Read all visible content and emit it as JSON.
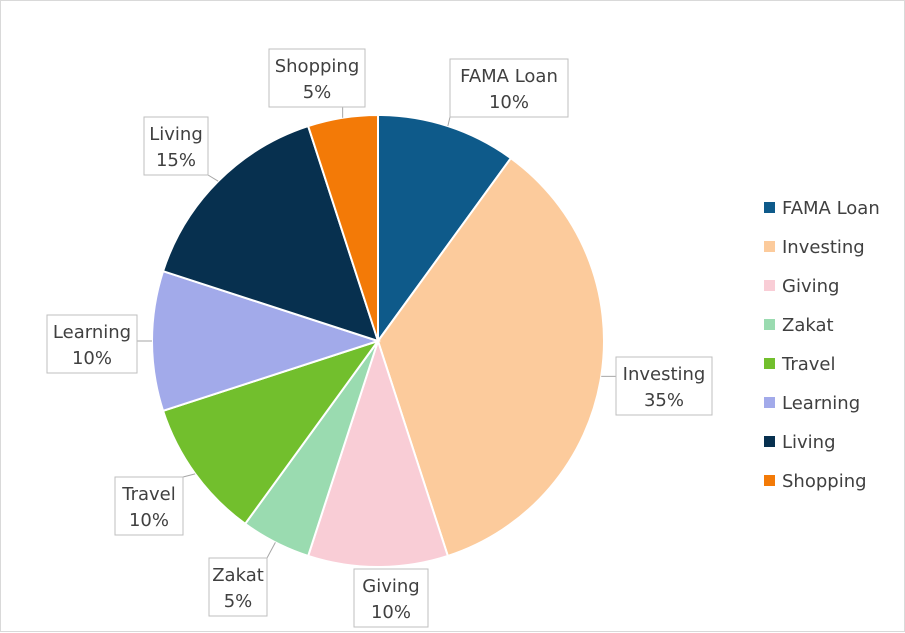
{
  "chart_data": {
    "type": "pie",
    "title": "",
    "legend_position": "right",
    "slices": [
      {
        "label": "FAMA Loan",
        "value": 10,
        "pct_label": "10%",
        "color": "#0e5a8a"
      },
      {
        "label": "Investing",
        "value": 35,
        "pct_label": "35%",
        "color": "#fccb9c"
      },
      {
        "label": "Giving",
        "value": 10,
        "pct_label": "10%",
        "color": "#f9cdd6"
      },
      {
        "label": "Zakat",
        "value": 5,
        "pct_label": "5%",
        "color": "#9adbb0"
      },
      {
        "label": "Travel",
        "value": 10,
        "pct_label": "10%",
        "color": "#72bf2d"
      },
      {
        "label": "Learning",
        "value": 10,
        "pct_label": "10%",
        "color": "#a2aaea"
      },
      {
        "label": "Living",
        "value": 15,
        "pct_label": "15%",
        "color": "#07304f"
      },
      {
        "label": "Shopping",
        "value": 5,
        "pct_label": "5%",
        "color": "#f37a07"
      }
    ]
  }
}
